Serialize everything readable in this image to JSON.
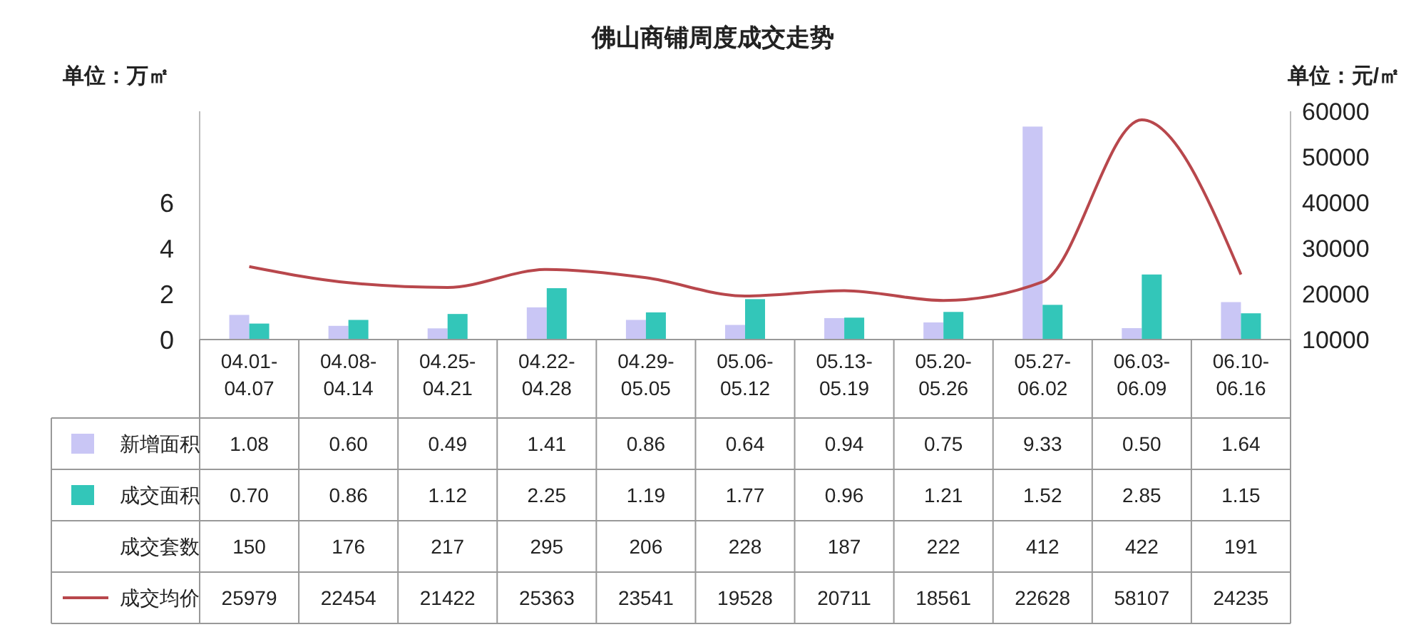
{
  "chart_data": {
    "type": "bar",
    "title": "佛山商铺周度成交走势",
    "ylabel": "单位：万㎡",
    "y2label": "单位：元/㎡",
    "categories": [
      "04.01-04.07",
      "04.08-04.14",
      "04.25-04.21",
      "04.22-04.28",
      "04.29-05.05",
      "05.06-05.12",
      "05.13-05.19",
      "05.20-05.26",
      "05.27-06.02",
      "06.03-06.09",
      "06.10-06.16"
    ],
    "series": [
      {
        "name": "新增面积",
        "color": "#c9c6f5",
        "values": [
          1.08,
          0.6,
          0.49,
          1.41,
          0.86,
          0.64,
          0.94,
          0.75,
          9.33,
          0.5,
          1.64
        ],
        "value_labels": [
          "1.08",
          "0.60",
          "0.49",
          "1.41",
          "0.86",
          "0.64",
          "0.94",
          "0.75",
          "9.33",
          "0.50",
          "1.64"
        ]
      },
      {
        "name": "成交面积",
        "color": "#33c6b9",
        "values": [
          0.7,
          0.86,
          1.12,
          2.25,
          1.19,
          1.77,
          0.96,
          1.21,
          1.52,
          2.85,
          1.15
        ],
        "value_labels": [
          "0.70",
          "0.86",
          "1.12",
          "2.25",
          "1.19",
          "1.77",
          "0.96",
          "1.21",
          "1.52",
          "2.85",
          "1.15"
        ]
      },
      {
        "name": "成交均价",
        "type": "line",
        "axis": "y2",
        "color": "#b8474c",
        "values": [
          25979,
          22454,
          21422,
          25363,
          23541,
          19528,
          20711,
          18561,
          22628,
          58107,
          24235
        ],
        "value_labels": [
          "25979",
          "22454",
          "21422",
          "25363",
          "23541",
          "19528",
          "20711",
          "18561",
          "22628",
          "58107",
          "24235"
        ]
      }
    ],
    "annotations": [
      "成交套数",
      "150",
      "176",
      "217",
      "295",
      "206",
      "228",
      "187",
      "222",
      "412",
      "422",
      "191"
    ],
    "ylim": [
      0,
      10
    ],
    "yticks": [
      0,
      2,
      4,
      6
    ],
    "y2lim": [
      10000,
      60000
    ],
    "y2ticks": [
      10000,
      20000,
      30000,
      40000,
      50000,
      60000
    ],
    "legend": "left",
    "grid": false
  }
}
